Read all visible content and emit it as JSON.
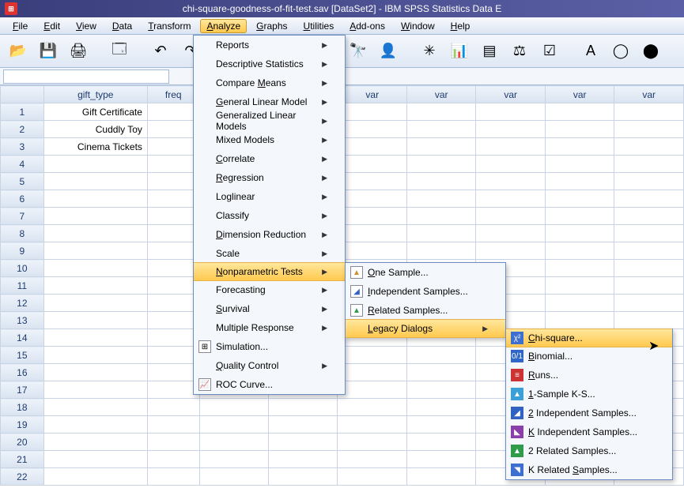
{
  "title": "chi-square-goodness-of-fit-test.sav [DataSet2] - IBM SPSS Statistics Data E",
  "menubar": {
    "items": [
      "File",
      "Edit",
      "View",
      "Data",
      "Transform",
      "Analyze",
      "Graphs",
      "Utilities",
      "Add-ons",
      "Window",
      "Help"
    ],
    "open_index": 5
  },
  "columns": [
    "gift_type",
    "freq",
    "var",
    "var",
    "var",
    "var",
    "var",
    "var",
    "var"
  ],
  "column_widths": [
    "50px",
    "120px",
    "60px",
    "80px",
    "80px",
    "80px",
    "80px",
    "80px",
    "80px",
    "80px"
  ],
  "rows": [
    {
      "n": 1,
      "gift_type": "Gift Certificate",
      "freq": ""
    },
    {
      "n": 2,
      "gift_type": "Cuddly Toy",
      "freq": ""
    },
    {
      "n": 3,
      "gift_type": "Cinema Tickets",
      "freq": ""
    }
  ],
  "total_visible_rows": 22,
  "analyze_menu": [
    {
      "label": "Reports",
      "arrow": true
    },
    {
      "label": "Descriptive Statistics",
      "u": "E",
      "arrow": true
    },
    {
      "label": "Compare Means",
      "u": "M",
      "arrow": true
    },
    {
      "label": "General Linear Model",
      "u": "G",
      "arrow": true
    },
    {
      "label": "Generalized Linear Models",
      "u": "Z",
      "arrow": true
    },
    {
      "label": "Mixed Models",
      "u": "X",
      "arrow": true
    },
    {
      "label": "Correlate",
      "u": "C",
      "arrow": true
    },
    {
      "label": "Regression",
      "u": "R",
      "arrow": true
    },
    {
      "label": "Loglinear",
      "u": "O",
      "arrow": true
    },
    {
      "label": "Classify",
      "u": "F",
      "arrow": true
    },
    {
      "label": "Dimension Reduction",
      "u": "D",
      "arrow": true
    },
    {
      "label": "Scale",
      "u": "A",
      "arrow": true
    },
    {
      "label": "Nonparametric Tests",
      "u": "N",
      "arrow": true,
      "hover": true
    },
    {
      "label": "Forecasting",
      "u": "T",
      "arrow": true
    },
    {
      "label": "Survival",
      "u": "S",
      "arrow": true
    },
    {
      "label": "Multiple Response",
      "u": "U",
      "arrow": true
    },
    {
      "label": "Simulation...",
      "u": "I",
      "icon": "⊞"
    },
    {
      "label": "Quality Control",
      "u": "Q",
      "arrow": true
    },
    {
      "label": "ROC Curve...",
      "u": "V",
      "icon": "📈"
    }
  ],
  "np_submenu": [
    {
      "label": "One Sample...",
      "u": "O",
      "icon": "▲",
      "icon_color": "#d98b2e"
    },
    {
      "label": "Independent Samples...",
      "u": "I",
      "icon": "◢",
      "icon_color": "#3060c8"
    },
    {
      "label": "Related Samples...",
      "u": "R",
      "icon": "▲",
      "icon_color": "#2e9c4a"
    },
    {
      "label": "Legacy Dialogs",
      "u": "L",
      "arrow": true,
      "hover": true
    }
  ],
  "legacy_submenu": [
    {
      "label": "Chi-square...",
      "u": "C",
      "icon": "χ²",
      "icon_bg": "#3d6fd1",
      "hover": true
    },
    {
      "label": "Binomial...",
      "u": "B",
      "icon": "0/1",
      "icon_bg": "#2f66c7"
    },
    {
      "label": "Runs...",
      "u": "R",
      "icon": "≡",
      "icon_bg": "#c33"
    },
    {
      "label": "1-Sample K-S...",
      "u": "1",
      "icon": "▲",
      "icon_bg": "#3ba0d8"
    },
    {
      "label": "2 Independent Samples...",
      "u": "2",
      "icon": "◢",
      "icon_bg": "#2f62c2"
    },
    {
      "label": "K Independent Samples...",
      "u": "K",
      "icon": "◣",
      "icon_bg": "#8c3fa8"
    },
    {
      "label": "2 Related Samples...",
      "u": "L",
      "icon": "▲",
      "icon_bg": "#2e9c4a"
    },
    {
      "label": "K Related Samples...",
      "u": "S",
      "icon": "◥",
      "icon_bg": "#3d6fd1"
    }
  ],
  "colors": {
    "titlebar_text": "#ffffff",
    "menu_highlight": "#ffc94f",
    "grid_border": "#c8d4e6",
    "header_text": "#1f3b6e"
  },
  "toolbar_icons": [
    {
      "name": "open",
      "glyph": "📂"
    },
    {
      "name": "save",
      "glyph": "💾"
    },
    {
      "name": "print",
      "glyph": "🖨"
    },
    {
      "name": "sep"
    },
    {
      "name": "recall",
      "glyph": "🗔"
    },
    {
      "name": "sep"
    },
    {
      "name": "undo",
      "glyph": "↶"
    },
    {
      "name": "redo",
      "glyph": "↷"
    },
    {
      "name": "gap"
    },
    {
      "name": "find",
      "glyph": "🔭"
    },
    {
      "name": "goto",
      "glyph": "👤"
    },
    {
      "name": "sep"
    },
    {
      "name": "insert-case",
      "glyph": "✳"
    },
    {
      "name": "insert-var",
      "glyph": "📊"
    },
    {
      "name": "split",
      "glyph": "▤"
    },
    {
      "name": "weight",
      "glyph": "⚖"
    },
    {
      "name": "select",
      "glyph": "☑"
    },
    {
      "name": "sep"
    },
    {
      "name": "value-labels",
      "glyph": "A"
    },
    {
      "name": "use-sets",
      "glyph": "◯"
    },
    {
      "name": "show",
      "glyph": "⬤"
    }
  ]
}
